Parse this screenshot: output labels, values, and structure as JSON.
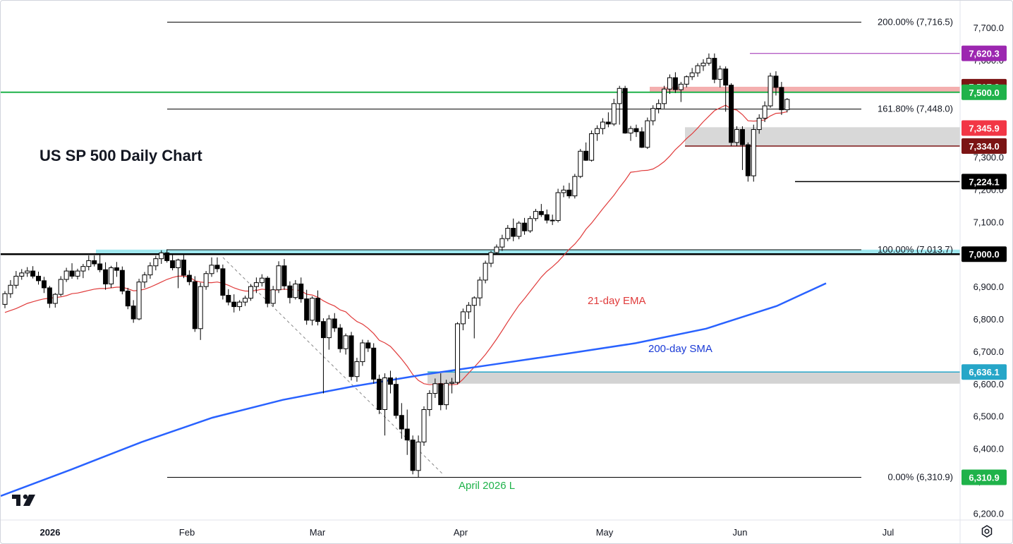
{
  "chart_title": "US SP 500 Daily Chart",
  "colors": {
    "up": "#ffffff",
    "down": "#000000",
    "ema": "#e03b3b",
    "sma": "#2962ff",
    "green": "#1fb24a",
    "cyan": "#26c6da",
    "gray_zone": "#c8c8c8",
    "pink_zone": "#f2a1a1"
  },
  "chart_data": {
    "type": "candlestick",
    "title": "US SP 500 Daily Chart",
    "y_axis": {
      "ticks": [
        "7,700.0",
        "7,600.0",
        "7,500.0",
        "7,400.0",
        "7,300.0",
        "7,200.0",
        "7,100.0",
        "7,000.0",
        "6,900.0",
        "6,800.0",
        "6,700.0",
        "6,600.0",
        "6,500.0",
        "6,400.0",
        "6,300.0",
        "6,200.0"
      ],
      "ylim": [
        6180,
        7738
      ]
    },
    "x_axis": {
      "ticks": [
        "2026",
        "Feb",
        "Mar",
        "Apr",
        "May",
        "Jun",
        "Jul"
      ]
    },
    "price_labels": [
      {
        "text": "7,620.3",
        "value": 7620.3,
        "color": "#9c27b0"
      },
      {
        "text": "7,517.2",
        "value": 7517.2,
        "color": "#7b1414"
      },
      {
        "text": "7,500.0",
        "value": 7500.0,
        "color": "#1fb24a"
      },
      {
        "text": "7,345.9",
        "value": 7345.9,
        "color": "#f23645"
      },
      {
        "text": "7,334.0",
        "value": 7334.0,
        "color": "#7b1414"
      },
      {
        "text": "7,224.1",
        "value": 7224.1,
        "color": "#000000"
      },
      {
        "text": "7,000.0",
        "value": 7000.0,
        "color": "#000000"
      },
      {
        "text": "6,636.1",
        "value": 6636.1,
        "color": "#26a6c8"
      },
      {
        "text": "6,310.9",
        "value": 6310.9,
        "color": "#1fb24a"
      }
    ],
    "fib_levels": [
      {
        "label": "200.00% (7,716.5)",
        "value": 7716.5
      },
      {
        "label": "161.80% (7,448.0)",
        "value": 7448.0
      },
      {
        "label": "100.00% (7,013.7)",
        "value": 7013.7
      },
      {
        "label": "0.00% (6,310.9)",
        "value": 6310.9
      }
    ],
    "annotations": [
      {
        "text": "21-day EMA",
        "color": "#e03b3b"
      },
      {
        "text": "200-day SMA",
        "color": "#1a3ad6"
      },
      {
        "text": "April 2026 L",
        "color": "#1fb24a"
      }
    ],
    "candles": [
      [
        6845,
        6886,
        6833,
        6878
      ],
      [
        6878,
        6920,
        6865,
        6904
      ],
      [
        6904,
        6948,
        6894,
        6932
      ],
      [
        6932,
        6954,
        6921,
        6942
      ],
      [
        6942,
        6960,
        6930,
        6948
      ],
      [
        6948,
        6963,
        6925,
        6932
      ],
      [
        6932,
        6946,
        6906,
        6918
      ],
      [
        6918,
        6930,
        6880,
        6896
      ],
      [
        6896,
        6902,
        6834,
        6848
      ],
      [
        6848,
        6880,
        6835,
        6876
      ],
      [
        6876,
        6932,
        6870,
        6922
      ],
      [
        6922,
        6958,
        6914,
        6948
      ],
      [
        6948,
        6972,
        6924,
        6932
      ],
      [
        6932,
        6955,
        6922,
        6948
      ],
      [
        6948,
        6970,
        6926,
        6962
      ],
      [
        6962,
        6996,
        6950,
        6980
      ],
      [
        6980,
        6996,
        6962,
        6970
      ],
      [
        6970,
        6998,
        6944,
        6952
      ],
      [
        6952,
        6975,
        6890,
        6908
      ],
      [
        6908,
        6964,
        6896,
        6958
      ],
      [
        6958,
        6976,
        6930,
        6950
      ],
      [
        6950,
        6962,
        6876,
        6886
      ],
      [
        6886,
        6896,
        6830,
        6840
      ],
      [
        6840,
        6858,
        6788,
        6800
      ],
      [
        6800,
        6924,
        6796,
        6914
      ],
      [
        6914,
        6945,
        6896,
        6936
      ],
      [
        6936,
        6975,
        6924,
        6964
      ],
      [
        6964,
        6995,
        6950,
        6986
      ],
      [
        6986,
        7012,
        6970,
        7004
      ],
      [
        7004,
        7015,
        6974,
        6980
      ],
      [
        6980,
        6998,
        6950,
        6958
      ],
      [
        6958,
        6986,
        6895,
        6982
      ],
      [
        6982,
        7000,
        6926,
        6935
      ],
      [
        6935,
        6950,
        6904,
        6915
      ],
      [
        6915,
        6932,
        6760,
        6770
      ],
      [
        6770,
        6912,
        6735,
        6900
      ],
      [
        6900,
        6948,
        6890,
        6940
      ],
      [
        6940,
        6990,
        6930,
        6966
      ],
      [
        6966,
        6990,
        6944,
        6955
      ],
      [
        6955,
        6968,
        6860,
        6873
      ],
      [
        6873,
        6892,
        6842,
        6852
      ],
      [
        6852,
        6876,
        6820,
        6838
      ],
      [
        6838,
        6858,
        6825,
        6852
      ],
      [
        6852,
        6872,
        6840,
        6864
      ],
      [
        6864,
        6908,
        6856,
        6900
      ],
      [
        6900,
        6928,
        6880,
        6912
      ],
      [
        6912,
        6938,
        6900,
        6926
      ],
      [
        6926,
        6932,
        6836,
        6848
      ],
      [
        6848,
        6902,
        6838,
        6890
      ],
      [
        6890,
        6978,
        6880,
        6964
      ],
      [
        6964,
        6985,
        6890,
        6902
      ],
      [
        6902,
        6916,
        6848,
        6866
      ],
      [
        6866,
        6920,
        6860,
        6908
      ],
      [
        6908,
        6928,
        6850,
        6862
      ],
      [
        6862,
        6890,
        6782,
        6796
      ],
      [
        6796,
        6870,
        6780,
        6864
      ],
      [
        6864,
        6888,
        6780,
        6792
      ],
      [
        6792,
        6802,
        6570,
        6742
      ],
      [
        6742,
        6812,
        6705,
        6800
      ],
      [
        6800,
        6818,
        6760,
        6772
      ],
      [
        6772,
        6784,
        6696,
        6708
      ],
      [
        6708,
        6755,
        6690,
        6748
      ],
      [
        6748,
        6760,
        6610,
        6622
      ],
      [
        6622,
        6680,
        6606,
        6668
      ],
      [
        6668,
        6736,
        6655,
        6726
      ],
      [
        6726,
        6735,
        6698,
        6710
      ],
      [
        6710,
        6725,
        6600,
        6614
      ],
      [
        6614,
        6628,
        6506,
        6520
      ],
      [
        6520,
        6632,
        6440,
        6618
      ],
      [
        6618,
        6640,
        6570,
        6598
      ],
      [
        6598,
        6620,
        6492,
        6502
      ],
      [
        6502,
        6540,
        6430,
        6460
      ],
      [
        6460,
        6520,
        6380,
        6426
      ],
      [
        6426,
        6440,
        6320,
        6332
      ],
      [
        6332,
        6440,
        6311,
        6420
      ],
      [
        6420,
        6530,
        6408,
        6520
      ],
      [
        6520,
        6580,
        6500,
        6570
      ],
      [
        6570,
        6616,
        6556,
        6600
      ],
      [
        6600,
        6632,
        6518,
        6535
      ],
      [
        6535,
        6612,
        6520,
        6601
      ],
      [
        6601,
        6618,
        6570,
        6604
      ],
      [
        6604,
        6790,
        6598,
        6785
      ],
      [
        6785,
        6832,
        6765,
        6822
      ],
      [
        6822,
        6852,
        6800,
        6842
      ],
      [
        6842,
        6870,
        6740,
        6865
      ],
      [
        6865,
        6930,
        6840,
        6920
      ],
      [
        6920,
        6980,
        6910,
        6972
      ],
      [
        6972,
        7010,
        6960,
        7005
      ],
      [
        7005,
        7030,
        6998,
        7022
      ],
      [
        7022,
        7060,
        7010,
        7048
      ],
      [
        7048,
        7090,
        7040,
        7080
      ],
      [
        7080,
        7110,
        7040,
        7055
      ],
      [
        7055,
        7102,
        7046,
        7096
      ],
      [
        7096,
        7112,
        7060,
        7072
      ],
      [
        7072,
        7118,
        7066,
        7110
      ],
      [
        7110,
        7140,
        7102,
        7132
      ],
      [
        7132,
        7155,
        7115,
        7122
      ],
      [
        7122,
        7138,
        7095,
        7105
      ],
      [
        7105,
        7122,
        7090,
        7104
      ],
      [
        7104,
        7202,
        7098,
        7190
      ],
      [
        7190,
        7212,
        7176,
        7198
      ],
      [
        7198,
        7220,
        7172,
        7180
      ],
      [
        7180,
        7248,
        7172,
        7240
      ],
      [
        7240,
        7325,
        7235,
        7318
      ],
      [
        7318,
        7345,
        7288,
        7290
      ],
      [
        7290,
        7382,
        7286,
        7372
      ],
      [
        7372,
        7398,
        7350,
        7388
      ],
      [
        7388,
        7420,
        7370,
        7408
      ],
      [
        7408,
        7438,
        7392,
        7402
      ],
      [
        7402,
        7480,
        7396,
        7465
      ],
      [
        7465,
        7520,
        7400,
        7512
      ],
      [
        7512,
        7520,
        7372,
        7374
      ],
      [
        7374,
        7396,
        7350,
        7388
      ],
      [
        7388,
        7400,
        7362,
        7378
      ],
      [
        7378,
        7392,
        7328,
        7330
      ],
      [
        7330,
        7422,
        7325,
        7412
      ],
      [
        7412,
        7460,
        7398,
        7450
      ],
      [
        7450,
        7478,
        7435,
        7465
      ],
      [
        7465,
        7520,
        7450,
        7510
      ],
      [
        7510,
        7555,
        7495,
        7545
      ],
      [
        7545,
        7562,
        7498,
        7508
      ],
      [
        7508,
        7532,
        7470,
        7525
      ],
      [
        7525,
        7552,
        7515,
        7548
      ],
      [
        7548,
        7575,
        7538,
        7560
      ],
      [
        7560,
        7590,
        7548,
        7582
      ],
      [
        7582,
        7602,
        7566,
        7590
      ],
      [
        7590,
        7620,
        7582,
        7605
      ],
      [
        7605,
        7620,
        7528,
        7540
      ],
      [
        7540,
        7582,
        7515,
        7572
      ],
      [
        7572,
        7580,
        7440,
        7522
      ],
      [
        7522,
        7528,
        7334,
        7345
      ],
      [
        7345,
        7395,
        7334,
        7385
      ],
      [
        7385,
        7395,
        7260,
        7338
      ],
      [
        7338,
        7345,
        7224,
        7242
      ],
      [
        7242,
        7400,
        7224,
        7385
      ],
      [
        7385,
        7432,
        7372,
        7420
      ],
      [
        7420,
        7472,
        7408,
        7458
      ],
      [
        7458,
        7560,
        7452,
        7550
      ],
      [
        7550,
        7565,
        7490,
        7515
      ],
      [
        7515,
        7532,
        7430,
        7446
      ],
      [
        7446,
        7482,
        7438,
        7478
      ]
    ],
    "ema21_values": [
      6820,
      6826,
      6832,
      6840,
      6848,
      6853,
      6858,
      6862,
      6864,
      6866,
      6868,
      6872,
      6878,
      6880,
      6884,
      6888,
      6892,
      6894,
      6894,
      6896,
      6898,
      6898,
      6893,
      6887,
      6888,
      6892,
      6898,
      6906,
      6914,
      6922,
      6928,
      6932,
      6932,
      6930,
      6918,
      6914,
      6912,
      6912,
      6914,
      6910,
      6904,
      6896,
      6890,
      6886,
      6886,
      6888,
      6892,
      6890,
      6888,
      6890,
      6892,
      6890,
      6890,
      6887,
      6876,
      6874,
      6867,
      6856,
      6847,
      6840,
      6828,
      6822,
      6806,
      6792,
      6784,
      6771,
      6755,
      6734,
      6726,
      6715,
      6696,
      6676,
      6654,
      6628,
      6610,
      6600,
      6597,
      6598,
      6601,
      6596,
      6597,
      6598,
      6614,
      6633,
      6651,
      6670,
      6690,
      6713,
      6738,
      6764,
      6791,
      6817,
      6842,
      6863,
      6885,
      6907,
      6929,
      6947,
      6961,
      6977,
      6996,
      7015,
      7031,
      7052,
      7077,
      7096,
      7118,
      7140,
      7161,
      7182,
      7206,
      7228,
      7253,
      7255,
      7258,
      7259,
      7263,
      7273,
      7286,
      7303,
      7323,
      7339,
      7357,
      7372,
      7390,
      7409,
      7426,
      7443,
      7452,
      7460,
      7448,
      7445,
      7431,
      7412,
      7411,
      7412,
      7415,
      7427,
      7435,
      7436,
      7440
    ]
  }
}
